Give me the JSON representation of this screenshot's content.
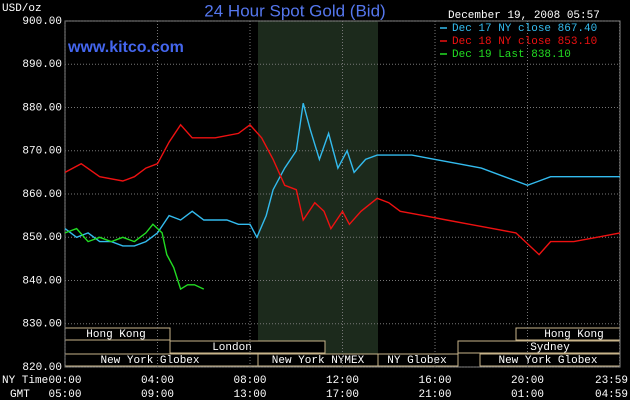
{
  "chart_data": {
    "type": "line",
    "title": "24 Hour Spot Gold (Bid)",
    "subtitle": "www.kitco.com",
    "timestamp": "December 19, 2008 05:57",
    "y_label": "USD/oz",
    "x_label": "NY Time",
    "x2_label": "GMT",
    "xlim": [
      0,
      24
    ],
    "ylim": [
      820,
      900
    ],
    "grid": true,
    "legend": "top-right",
    "yticks": [
      {
        "value": 820,
        "label": "820.00"
      },
      {
        "value": 830,
        "label": "830.00"
      },
      {
        "value": 840,
        "label": "840.00"
      },
      {
        "value": 850,
        "label": "850.00"
      },
      {
        "value": 860,
        "label": "860.00"
      },
      {
        "value": 870,
        "label": "870.00"
      },
      {
        "value": 880,
        "label": "880.00"
      },
      {
        "value": 890,
        "label": "890.00"
      },
      {
        "value": 900,
        "label": "900.00"
      }
    ],
    "xticks": [
      {
        "value": 0,
        "label": "00:00"
      },
      {
        "value": 4,
        "label": "04:00"
      },
      {
        "value": 8,
        "label": "08:00"
      },
      {
        "value": 12,
        "label": "12:00"
      },
      {
        "value": 16,
        "label": "16:00"
      },
      {
        "value": 20,
        "label": "20:00"
      },
      {
        "value": 23.983,
        "label": "23:59"
      }
    ],
    "x2tick_labels": [
      "05:00",
      "09:00",
      "13:00",
      "17:00",
      "21:00",
      "01:00",
      "04:59"
    ],
    "sessions": [
      "Hong Kong",
      "London",
      "New York Globex",
      "New York NYMEX",
      "NY Globex",
      "Sydney",
      "Hong Kong",
      "New York Globex"
    ],
    "series": [
      {
        "name": "Dec 17 NY close 867.40",
        "color": "#33bbee",
        "x": [
          0,
          0.5,
          1,
          1.5,
          2,
          2.5,
          3,
          3.5,
          4,
          4.5,
          5,
          5.5,
          6,
          6.5,
          7,
          7.5,
          8,
          8.3,
          8.7,
          9,
          9.5,
          10,
          10.3,
          10.6,
          11,
          11.4,
          11.8,
          12.2,
          12.5,
          13,
          13.5,
          14,
          15,
          16,
          17,
          18,
          19,
          20,
          20.5,
          21,
          22,
          23,
          24
        ],
        "values": [
          852,
          850,
          851,
          849,
          849,
          848,
          848,
          849,
          851,
          855,
          854,
          856,
          854,
          854,
          854,
          853,
          853,
          850,
          855,
          861,
          866,
          870,
          881,
          875,
          868,
          874,
          866,
          870,
          865,
          868,
          869,
          869,
          869,
          868,
          867,
          866,
          864,
          862,
          863,
          864,
          864,
          864,
          864
        ]
      },
      {
        "name": "Dec 18 NY close 853.10",
        "color": "#ee1111",
        "x": [
          0,
          0.7,
          1.5,
          2.5,
          3,
          3.5,
          4,
          4.5,
          5,
          5.5,
          6.5,
          7.5,
          8,
          8.5,
          9,
          9.5,
          10,
          10.3,
          10.8,
          11.2,
          11.5,
          12,
          12.3,
          12.8,
          13.5,
          14,
          14.5,
          15.5,
          16.5,
          17.5,
          18.5,
          19.5,
          20.5,
          21,
          22,
          23,
          24
        ],
        "values": [
          865,
          867,
          864,
          863,
          864,
          866,
          867,
          872,
          876,
          873,
          873,
          874,
          876,
          873,
          868,
          862,
          861,
          854,
          858,
          856,
          852,
          856,
          853,
          856,
          859,
          858,
          856,
          855,
          854,
          853,
          852,
          851,
          846,
          849,
          849,
          850,
          851
        ]
      },
      {
        "name": "Dec 19 Last 838.10",
        "color": "#22dd22",
        "x": [
          0,
          0.5,
          1,
          1.5,
          2,
          2.5,
          3,
          3.5,
          3.8,
          4.2,
          4.4,
          4.7,
          5,
          5.3,
          5.6,
          6
        ],
        "values": [
          851,
          852,
          849,
          850,
          849,
          850,
          849,
          851,
          853,
          851,
          846,
          843,
          838,
          839,
          839,
          838
        ]
      }
    ]
  }
}
